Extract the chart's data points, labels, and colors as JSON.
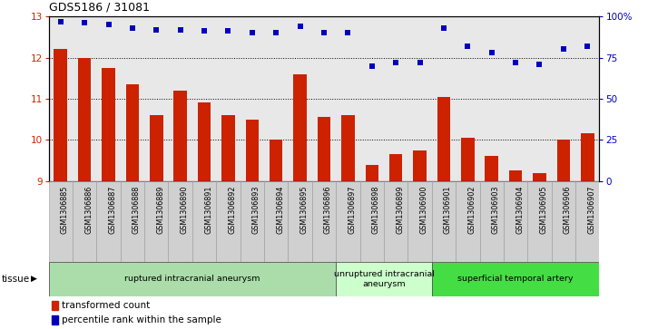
{
  "title": "GDS5186 / 31081",
  "samples": [
    "GSM1306885",
    "GSM1306886",
    "GSM1306887",
    "GSM1306888",
    "GSM1306889",
    "GSM1306890",
    "GSM1306891",
    "GSM1306892",
    "GSM1306893",
    "GSM1306894",
    "GSM1306895",
    "GSM1306896",
    "GSM1306897",
    "GSM1306898",
    "GSM1306899",
    "GSM1306900",
    "GSM1306901",
    "GSM1306902",
    "GSM1306903",
    "GSM1306904",
    "GSM1306905",
    "GSM1306906",
    "GSM1306907"
  ],
  "transformed_count": [
    12.2,
    12.0,
    11.75,
    11.35,
    10.6,
    11.2,
    10.9,
    10.6,
    10.5,
    10.0,
    11.6,
    10.55,
    10.6,
    9.4,
    9.65,
    9.75,
    11.05,
    10.05,
    9.6,
    9.25,
    9.2,
    10.0,
    10.15
  ],
  "percentile_rank": [
    97,
    96,
    95,
    93,
    92,
    92,
    91,
    91,
    90,
    90,
    94,
    90,
    90,
    70,
    72,
    72,
    93,
    82,
    78,
    72,
    71,
    80,
    82
  ],
  "ylim_left": [
    9,
    13
  ],
  "ylim_right": [
    0,
    100
  ],
  "yticks_left": [
    9,
    10,
    11,
    12,
    13
  ],
  "yticks_right": [
    0,
    25,
    50,
    75,
    100
  ],
  "ytick_labels_right": [
    "0",
    "25",
    "50",
    "75",
    "100%"
  ],
  "bar_color": "#cc2200",
  "dot_color": "#0000bb",
  "plot_bg": "#e8e8e8",
  "xlabel_bg": "#d0d0d0",
  "tissue_groups": [
    {
      "label": "ruptured intracranial aneurysm",
      "start": 0,
      "end": 12,
      "color": "#aaddaa"
    },
    {
      "label": "unruptured intracranial\naneurysm",
      "start": 12,
      "end": 16,
      "color": "#ccffcc"
    },
    {
      "label": "superficial temporal artery",
      "start": 16,
      "end": 23,
      "color": "#44dd44"
    }
  ],
  "legend_bar_label": "transformed count",
  "legend_dot_label": "percentile rank within the sample",
  "tissue_label": "tissue"
}
